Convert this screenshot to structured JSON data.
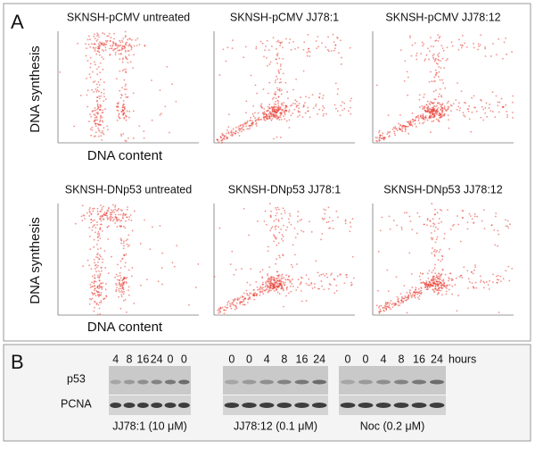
{
  "panel_a": {
    "label": "A",
    "y_axis_label": "DNA synthesis",
    "x_axis_label": "DNA content",
    "plot_titles": [
      "SKNSH-pCMV untreated",
      "SKNSH-pCMV JJ78:1",
      "SKNSH-pCMV JJ78:12",
      "SKNSH-DNp53 untreated",
      "SKNSH-DNp53 JJ78:1",
      "SKNSH-DNp53 JJ78:12"
    ]
  },
  "panel_b": {
    "label": "B",
    "rows": [
      "p53",
      "PCNA"
    ],
    "time_unit": "hours",
    "groups": [
      {
        "lanes": [
          "4",
          "8",
          "16",
          "24",
          "0",
          "0"
        ],
        "caption": "JJ78:1 (10 μM)"
      },
      {
        "lanes": [
          "0",
          "0",
          "4",
          "8",
          "16",
          "24"
        ],
        "caption": "JJ78:12 (0.1 μM)"
      },
      {
        "lanes": [
          "0",
          "0",
          "4",
          "8",
          "16",
          "24"
        ],
        "caption": "Noc (0.2 μM)"
      }
    ]
  }
}
